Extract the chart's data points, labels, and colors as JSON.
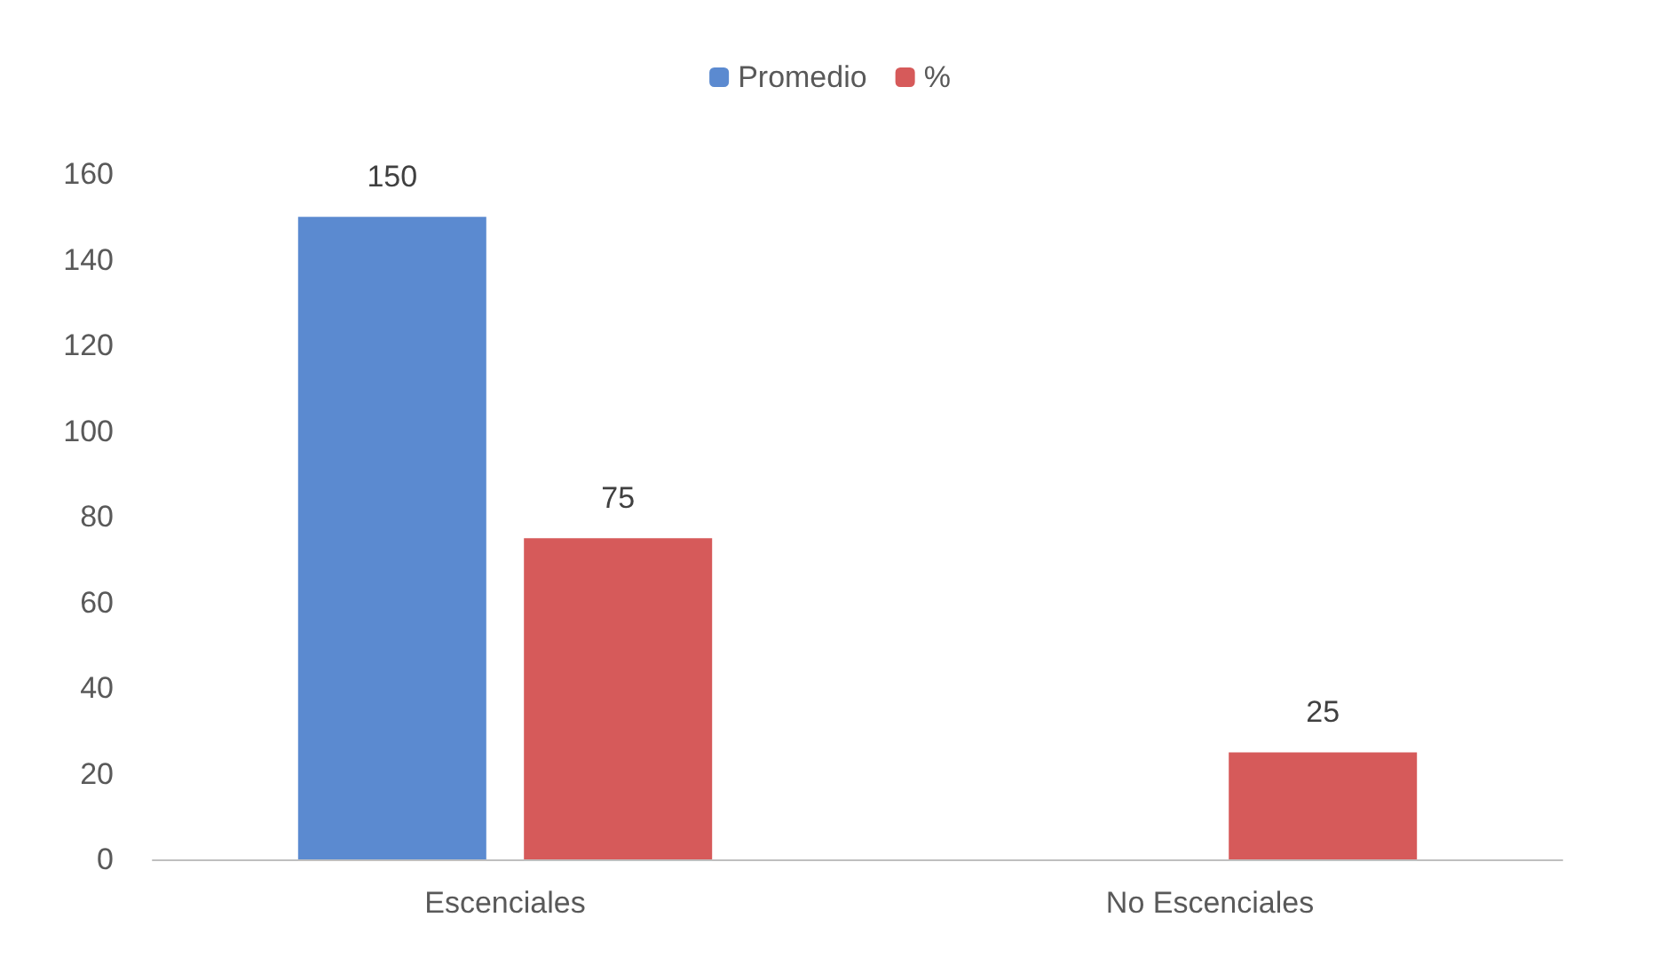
{
  "chart_data": {
    "type": "bar",
    "categories": [
      "Escenciales",
      "No Escenciales"
    ],
    "series": [
      {
        "name": "Promedio",
        "color": "#5b8ad0",
        "values": [
          150,
          null
        ]
      },
      {
        "name": "%",
        "color": "#d65a5a",
        "values": [
          75,
          25
        ]
      }
    ],
    "ylim": [
      0,
      160
    ],
    "yticks": [
      0,
      20,
      40,
      60,
      80,
      100,
      120,
      140,
      160
    ],
    "grid": false,
    "legend": "top",
    "data_labels": true
  }
}
